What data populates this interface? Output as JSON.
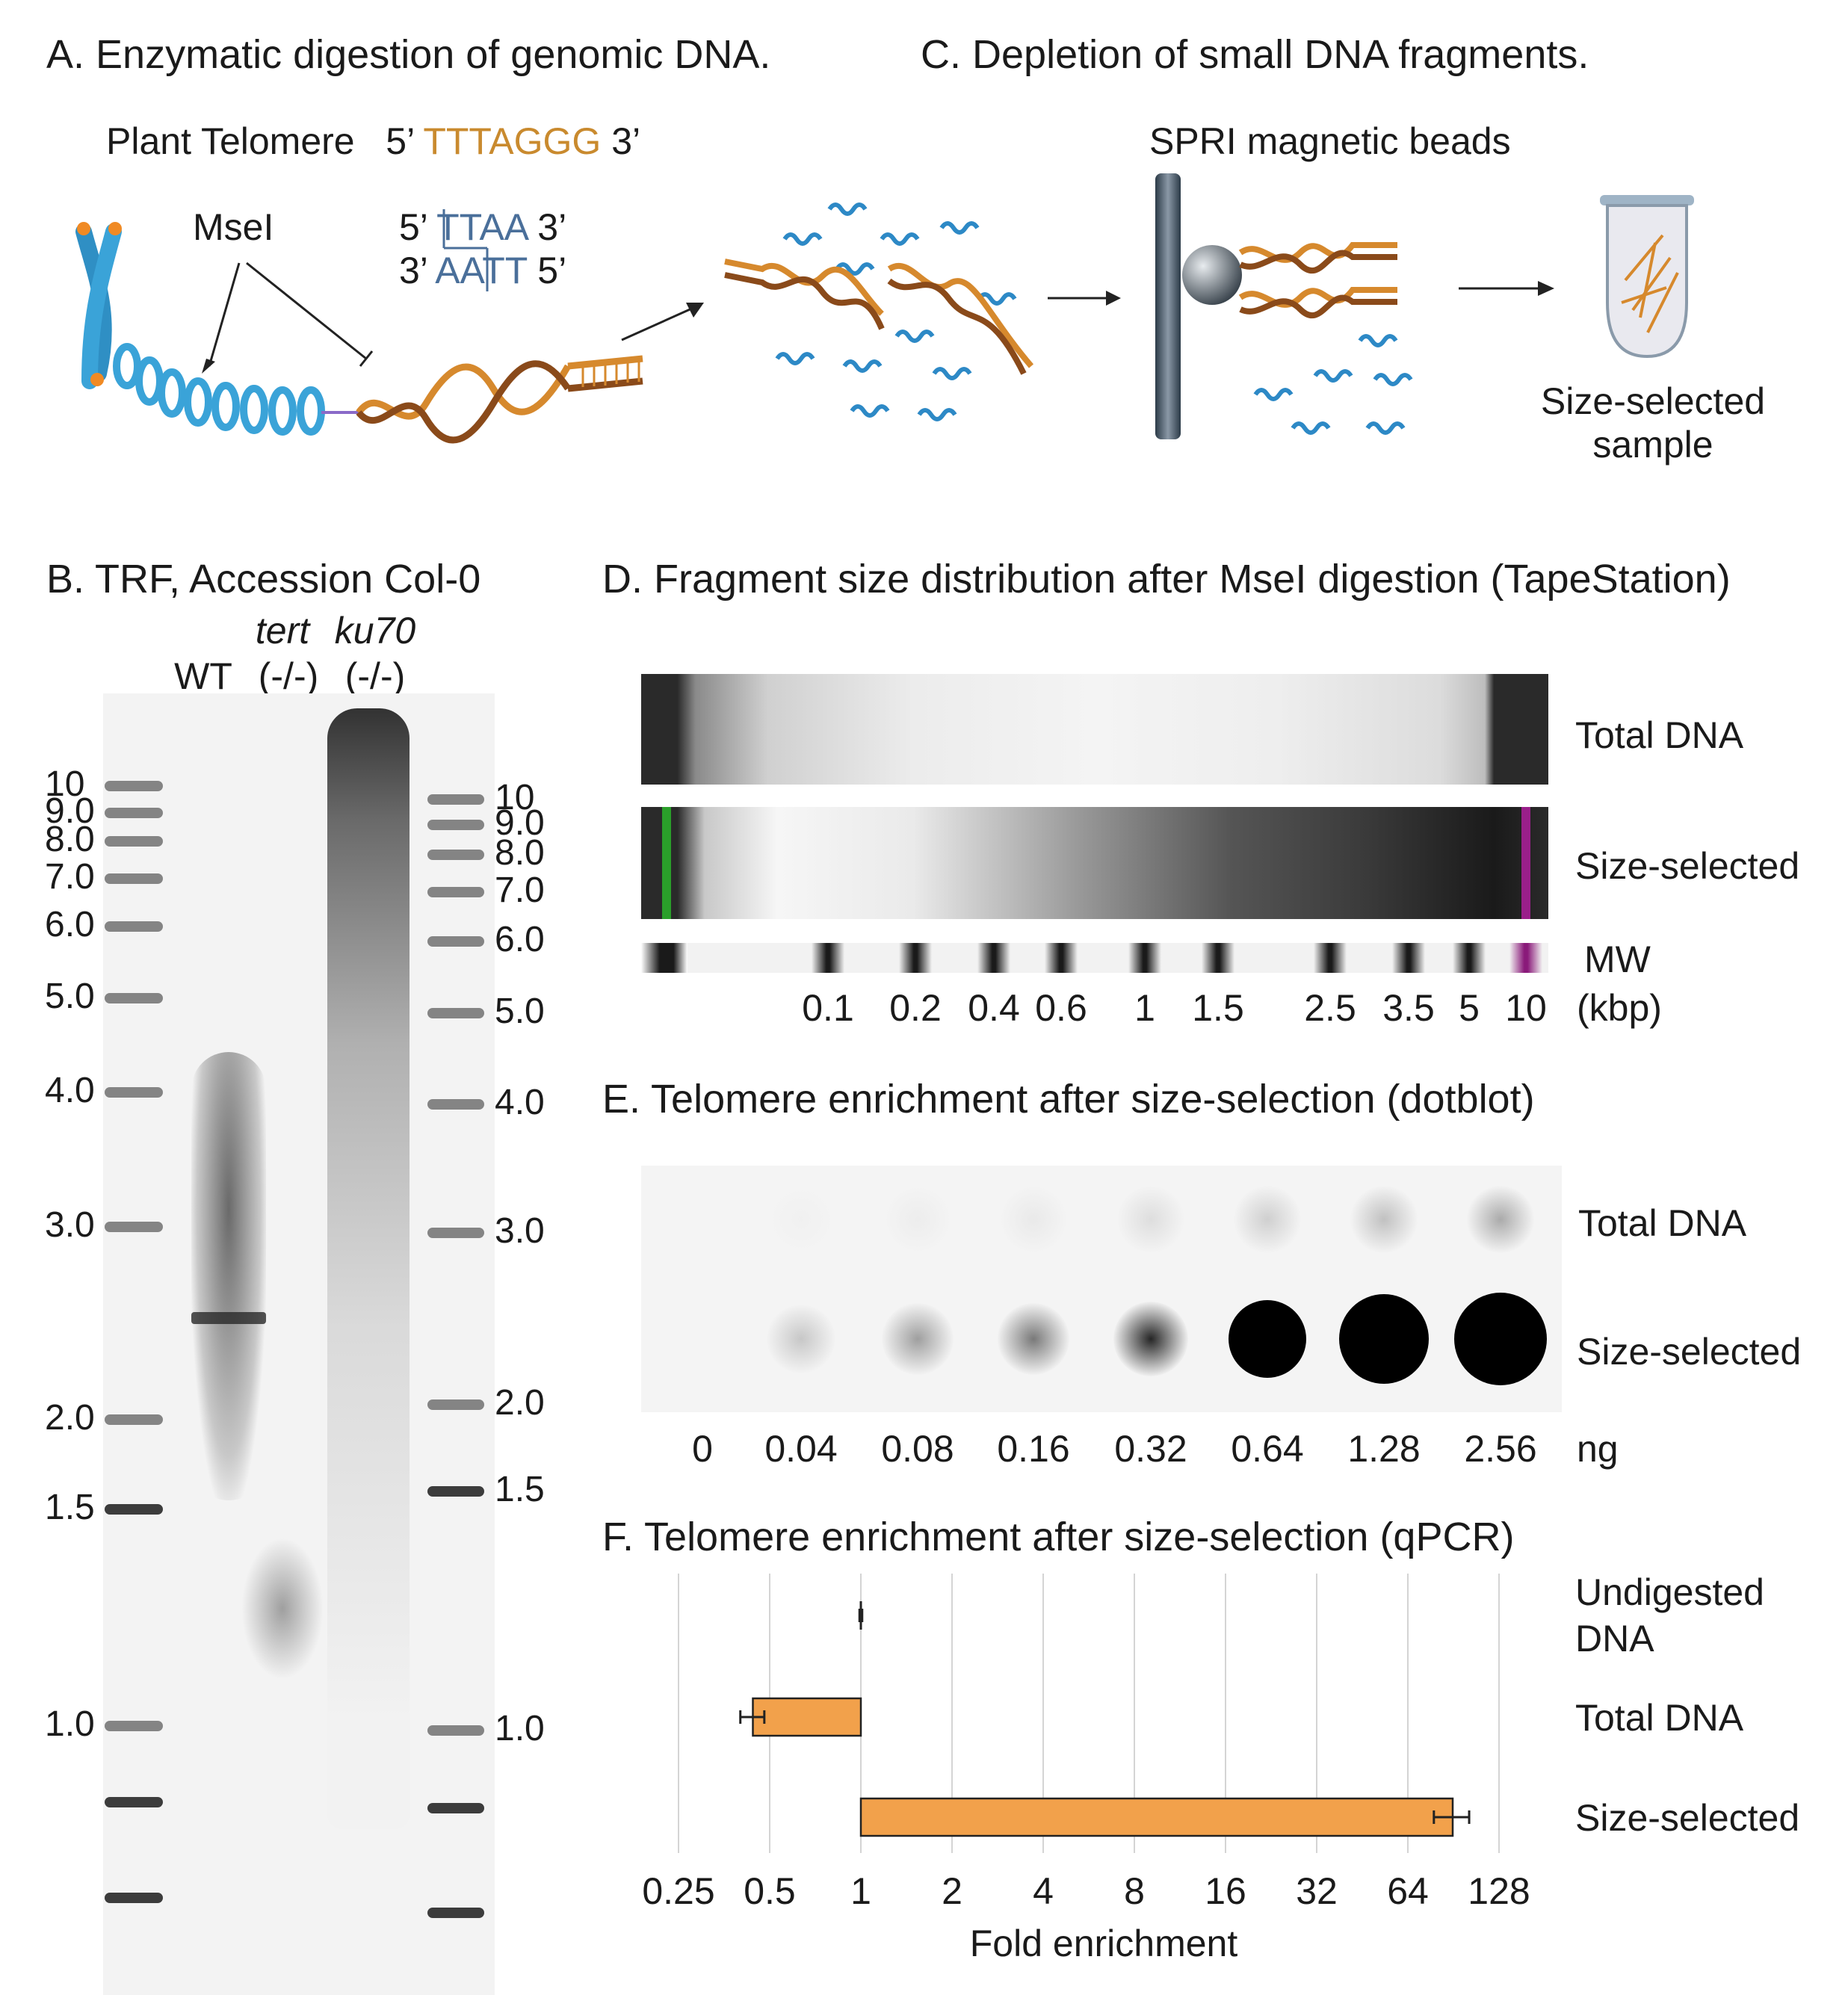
{
  "panel_a": {
    "title_letter": "A",
    "title_rest": ". Enzymatic digestion of genomic DNA.",
    "plant_telomere_label": "Plant Telomere",
    "telomere_5": "5’",
    "telomere_seq": "TTTAGGG",
    "telomere_3": "3’",
    "enzyme": "MseI",
    "site_top_5": "5’",
    "site_top_t": "T",
    "site_top_rest": "TAA",
    "site_top_3": "3’",
    "site_bottom_3": "3’",
    "site_bottom_seq": "AAT",
    "site_bottom_t": "T",
    "site_bottom_5": "5’"
  },
  "panel_c": {
    "title_letter": "C",
    "title_rest": ". Depletion of small DNA fragments.",
    "beads_label": "SPRI magnetic beads",
    "sample_label_line1": "Size-selected",
    "sample_label_line2": "sample"
  },
  "panel_b": {
    "title_letter": "B",
    "title_rest": ". TRF, Accession Col-0",
    "lanes": [
      {
        "genotype": "",
        "label": "WT"
      },
      {
        "genotype": "tert",
        "label": "(-/-)"
      },
      {
        "genotype": "ku70",
        "label": "(-/-)"
      }
    ],
    "left_ladder": [
      "10",
      "9.0",
      "8.0",
      "7.0",
      "6.0",
      "5.0",
      "4.0",
      "3.0",
      "2.0",
      "1.5",
      "1.0"
    ],
    "right_ladder": [
      "10",
      "9.0",
      "8.0",
      "7.0",
      "6.0",
      "5.0",
      "4.0",
      "3.0",
      "2.0",
      "1.5",
      "1.0"
    ]
  },
  "panel_d": {
    "title_letter": "D",
    "title_rest": ". Fragment size distribution after MseI digestion (TapeStation)",
    "rows": [
      "Total DNA",
      "Size-selected",
      "MW"
    ],
    "ticks": [
      "0.1",
      "0.2",
      "0.4",
      "0.6",
      "1",
      "1.5",
      "2.5",
      "3.5",
      "5",
      "10"
    ],
    "unit": "(kbp)",
    "lower_marker_color": "#2aa02a",
    "upper_marker_color": "#9a1f8a"
  },
  "panel_e": {
    "title_letter": "E",
    "title_rest": ". Telomere enrichment after size-selection (dotblot)",
    "rows": [
      "Total DNA",
      "Size-selected"
    ],
    "amounts": [
      "0",
      "0.04",
      "0.08",
      "0.16",
      "0.32",
      "0.64",
      "1.28",
      "2.56"
    ],
    "unit": "ng"
  },
  "chart_data": {
    "type": "bar",
    "title": "F. Telomere enrichment after size-selection (qPCR)",
    "orientation": "horizontal",
    "x_scale": "log2",
    "xlim": [
      0.25,
      128
    ],
    "xticks": [
      "0.25",
      "0.5",
      "1",
      "2",
      "4",
      "8",
      "16",
      "32",
      "64",
      "128"
    ],
    "xlabel": "Fold enrichment",
    "baseline": 1,
    "categories": [
      {
        "line1": "Undigested",
        "line2": "DNA"
      },
      {
        "line1": "Total DNA",
        "line2": ""
      },
      {
        "line1": "Size-selected",
        "line2": ""
      }
    ],
    "values": [
      1.0,
      0.44,
      90
    ],
    "errors": [
      0.01,
      0.04,
      12
    ],
    "bar_color": "#f2a14b",
    "grid": true
  }
}
